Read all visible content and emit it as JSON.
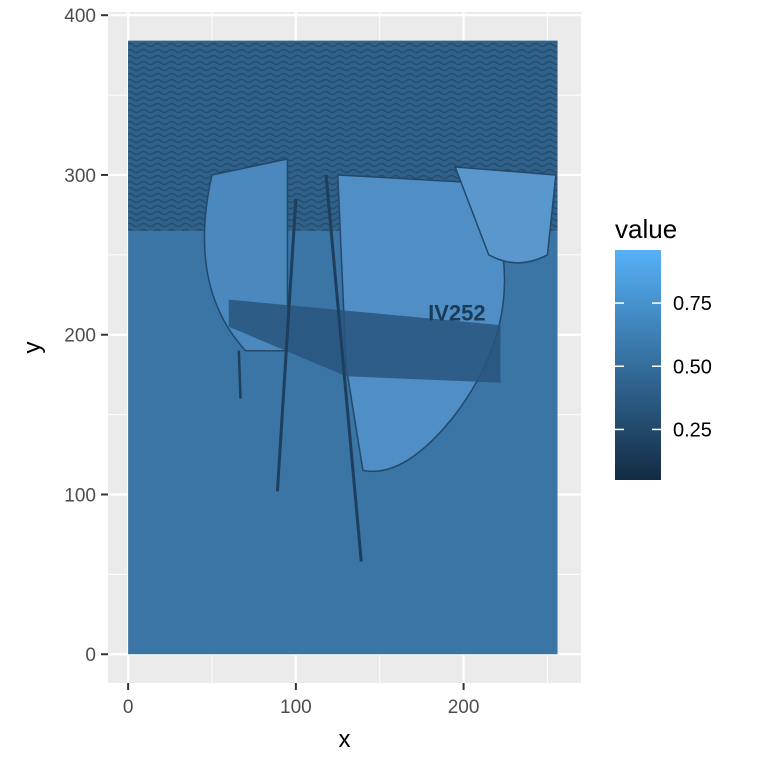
{
  "chart_data": {
    "type": "heatmap",
    "xlabel": "x",
    "ylabel": "y",
    "xlim": [
      -12,
      270
    ],
    "ylim": [
      -18,
      402
    ],
    "x_ticks": [
      0,
      100,
      200
    ],
    "y_ticks": [
      0,
      100,
      200,
      300,
      400
    ],
    "x_tick_labels": [
      "0",
      "100",
      "200"
    ],
    "y_tick_labels": [
      "0",
      "100",
      "200",
      "300",
      "400"
    ],
    "image_extent": {
      "x": [
        0,
        256
      ],
      "y": [
        0,
        384
      ]
    },
    "legend": {
      "title": "value",
      "range": [
        0.05,
        0.96
      ],
      "breaks": [
        0.25,
        0.5,
        0.75
      ],
      "labels": [
        "0.25",
        "0.50",
        "0.75"
      ],
      "low_color": "#132b43",
      "high_color": "#56b1f7",
      "placement": "right"
    },
    "grid": true,
    "image_text": "IV252",
    "colors": {
      "panel": "#ebebeb",
      "grid": "#ffffff",
      "water": "#3b75a5",
      "waves": "#2b5a82",
      "dark": "#1d3e5c"
    }
  }
}
